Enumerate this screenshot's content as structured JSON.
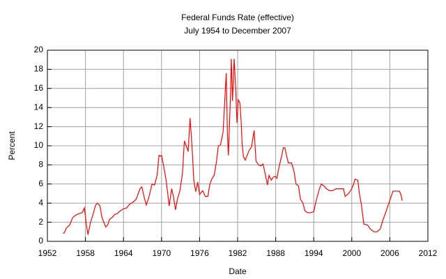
{
  "chart_data": {
    "type": "line",
    "title": "Federal Funds Rate (effective)",
    "subtitle": "July 1954 to December 2007",
    "x_label": "Date",
    "y_label": "Percent",
    "color": "#ff0000",
    "grid": true,
    "xlim": [
      1952,
      2012
    ],
    "xticks": [
      1952,
      1958,
      1964,
      1970,
      1976,
      1982,
      1988,
      1994,
      2000,
      2006,
      2012
    ],
    "ylim": [
      0,
      20
    ],
    "yticks": [
      0,
      2,
      4,
      6,
      8,
      10,
      12,
      14,
      16,
      18,
      20
    ],
    "x": [
      1954.5,
      1954.75,
      1955,
      1955.5,
      1956,
      1956.5,
      1957,
      1957.5,
      1957.83,
      1958.2,
      1958.4,
      1958.8,
      1959.2,
      1959.6,
      1959.9,
      1960.3,
      1960.6,
      1960.9,
      1961.2,
      1961.5,
      1961.8,
      1962.2,
      1962.6,
      1963,
      1963.5,
      1964,
      1964.5,
      1965,
      1965.5,
      1966,
      1966.6,
      1966.9,
      1967.3,
      1967.6,
      1968,
      1968.5,
      1968.9,
      1969.3,
      1969.6,
      1969.8,
      1970,
      1970.3,
      1970.7,
      1971,
      1971.2,
      1971.6,
      1971.9,
      1972.2,
      1972.5,
      1972.9,
      1973.3,
      1973.6,
      1973.9,
      1974.2,
      1974.5,
      1974.8,
      1975.1,
      1975.4,
      1975.7,
      1976,
      1976.5,
      1976.9,
      1977.3,
      1977.6,
      1977.9,
      1978.3,
      1978.7,
      1978.95,
      1979.3,
      1979.7,
      1979.9,
      1980.2,
      1980.4,
      1980.55,
      1980.9,
      1981,
      1981.2,
      1981.45,
      1981.7,
      1981.9,
      1982.1,
      1982.35,
      1982.55,
      1982.7,
      1982.9,
      1983.2,
      1983.5,
      1983.8,
      1984.2,
      1984.5,
      1984.6,
      1984.9,
      1985.3,
      1985.7,
      1986,
      1986.4,
      1986.7,
      1986.95,
      1987.3,
      1987.6,
      1987.9,
      1988.2,
      1988.5,
      1988.9,
      1989.2,
      1989.45,
      1989.7,
      1990,
      1990.5,
      1990.9,
      1991.2,
      1991.6,
      1991.9,
      1992.3,
      1992.6,
      1993,
      1993.5,
      1994,
      1994.4,
      1994.9,
      1995.2,
      1995.6,
      1996,
      1996.5,
      1997,
      1997.5,
      1998,
      1998.7,
      1998.95,
      1999.5,
      1999.9,
      2000.3,
      2000.5,
      2000.95,
      2001.2,
      2001.5,
      2001.9,
      2002.5,
      2002.9,
      2003.5,
      2004,
      2004.5,
      2004.9,
      2005.5,
      2005.95,
      2006.5,
      2007.5,
      2007.75,
      2007.95
    ],
    "values": [
      0.8,
      1.0,
      1.4,
      1.7,
      2.5,
      2.75,
      2.9,
      3.0,
      3.5,
      1.5,
      0.7,
      2.0,
      2.8,
      3.8,
      4.0,
      3.7,
      2.5,
      2.0,
      1.5,
      1.7,
      2.3,
      2.5,
      2.8,
      2.9,
      3.2,
      3.4,
      3.5,
      3.9,
      4.1,
      4.4,
      5.5,
      5.7,
      4.5,
      3.8,
      4.6,
      6.0,
      5.9,
      6.9,
      9.0,
      8.9,
      9.0,
      8.0,
      6.5,
      4.9,
      3.7,
      5.5,
      4.6,
      3.3,
      4.4,
      5.3,
      7.1,
      10.5,
      10.0,
      9.4,
      12.9,
      10.0,
      6.3,
      5.2,
      6.2,
      4.9,
      5.3,
      4.7,
      4.7,
      5.9,
      6.5,
      6.9,
      8.5,
      10.0,
      10.1,
      11.4,
      13.8,
      17.6,
      11.0,
      9.0,
      15.8,
      19.1,
      14.7,
      19.1,
      15.9,
      12.4,
      14.8,
      14.5,
      12.6,
      10.3,
      8.9,
      8.5,
      9.0,
      9.5,
      9.9,
      11.2,
      11.6,
      8.4,
      8.0,
      7.9,
      8.1,
      6.9,
      5.9,
      6.9,
      6.4,
      6.7,
      6.8,
      6.6,
      7.7,
      8.8,
      9.8,
      9.8,
      9.0,
      8.2,
      8.2,
      7.3,
      6.0,
      5.8,
      4.4,
      4.0,
      3.2,
      3.0,
      3.0,
      3.1,
      4.3,
      5.5,
      6.0,
      5.8,
      5.5,
      5.3,
      5.3,
      5.5,
      5.5,
      5.5,
      4.7,
      5.0,
      5.4,
      6.0,
      6.5,
      6.4,
      5.0,
      3.9,
      1.8,
      1.7,
      1.3,
      1.0,
      1.0,
      1.3,
      2.2,
      3.3,
      4.2,
      5.25,
      5.25,
      4.9,
      4.25
    ]
  }
}
